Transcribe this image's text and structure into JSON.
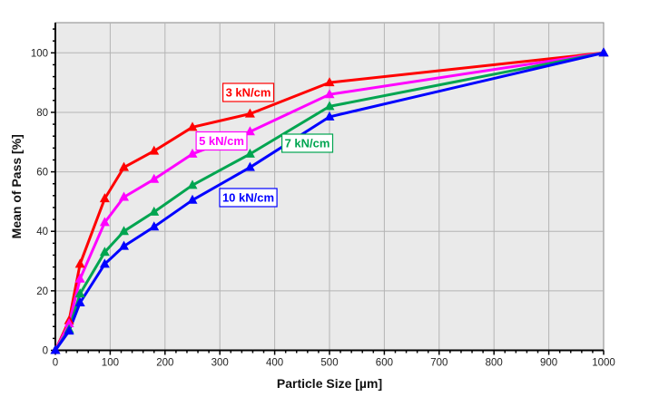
{
  "chart_data": {
    "type": "line",
    "title": "",
    "xlabel": "Particle Size [µm]",
    "ylabel": "Mean of Pass [%]",
    "xlim": [
      0,
      1000
    ],
    "ylim": [
      0,
      110
    ],
    "grid": true,
    "legend": "inline labels",
    "x_ticks": [
      "0",
      "100",
      "200",
      "300",
      "400",
      "500",
      "600",
      "700",
      "800",
      "900",
      "1000"
    ],
    "y_ticks": [
      "0",
      "20",
      "40",
      "60",
      "80",
      "100"
    ],
    "x": [
      0,
      25,
      45,
      90,
      125,
      180,
      250,
      355,
      500,
      1000
    ],
    "series": [
      {
        "name": "3 kN/cm",
        "color": "#ff0000",
        "marker": "triangle",
        "values": [
          0,
          10,
          29,
          51,
          61.5,
          67,
          75,
          79.5,
          90,
          100
        ]
      },
      {
        "name": "5 kN/cm",
        "color": "#ff00ff",
        "marker": "triangle",
        "values": [
          0,
          9,
          24,
          43,
          51.5,
          57.5,
          66,
          73.5,
          86,
          100
        ]
      },
      {
        "name": "7 kN/cm",
        "color": "#00a550",
        "marker": "triangle",
        "values": [
          0,
          7,
          19,
          33,
          40,
          46.5,
          55.5,
          66,
          82,
          100
        ]
      },
      {
        "name": "10 kN/cm",
        "color": "#0000ff",
        "marker": "triangle",
        "values": [
          0,
          6.5,
          16,
          29,
          35,
          41.5,
          50.5,
          61.5,
          78.5,
          100
        ]
      }
    ],
    "annotations": [
      {
        "text": "3 kN/cm",
        "series": "3 kN/cm"
      },
      {
        "text": "5 kN/cm",
        "series": "5 kN/cm"
      },
      {
        "text": "7 kN/cm",
        "series": "7 kN/cm"
      },
      {
        "text": "10 kN/cm",
        "series": "10 kN/cm"
      }
    ],
    "colors": {
      "plot_background": "#eaeaea",
      "grid": "#b4b4b4",
      "axis": "#000000"
    }
  }
}
